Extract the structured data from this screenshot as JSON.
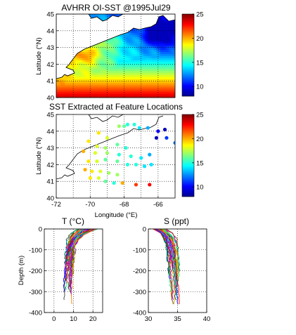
{
  "chart_data": [
    {
      "id": "map1",
      "type": "heatmap",
      "title": "AVHRR OI-SST @1995Jul29",
      "ylabel": "Latitude (°N)",
      "xlim": [
        -72,
        -65
      ],
      "ylim": [
        40,
        45
      ],
      "xticks": [],
      "yticks": [
        40,
        41,
        42,
        43,
        44,
        45
      ],
      "colorbar": {
        "ticks": [
          10,
          15,
          20,
          25
        ],
        "range": [
          8,
          25
        ]
      }
    },
    {
      "id": "map2",
      "type": "scatter",
      "title": "SST Extracted at Feature Locations",
      "xlabel": "Longitude (°E)",
      "ylabel": "Latitude (°N)",
      "xlim": [
        -72,
        -65
      ],
      "ylim": [
        40,
        45
      ],
      "xticks": [
        -72,
        -70,
        -68,
        -66
      ],
      "yticks": [
        40,
        41,
        42,
        43,
        44,
        45
      ],
      "colorbar": {
        "ticks": [
          10,
          15,
          20,
          25
        ],
        "range": [
          8,
          25
        ]
      },
      "points": [
        [
          -68.3,
          44.3,
          17
        ],
        [
          -68.0,
          44.3,
          16
        ],
        [
          -67.8,
          44.4,
          15
        ],
        [
          -67.4,
          44.4,
          15
        ],
        [
          -67.1,
          44.2,
          14
        ],
        [
          -66.6,
          44.2,
          13
        ],
        [
          -66.0,
          44.0,
          10
        ],
        [
          -65.6,
          44.1,
          9
        ],
        [
          -66.1,
          43.6,
          9
        ],
        [
          -65.5,
          43.6,
          11
        ],
        [
          -65.0,
          43.3,
          12
        ],
        [
          -69.5,
          43.9,
          19
        ],
        [
          -69.0,
          43.6,
          18
        ],
        [
          -70.1,
          43.4,
          19
        ],
        [
          -69.6,
          43.1,
          18
        ],
        [
          -69.1,
          43.0,
          17
        ],
        [
          -68.4,
          43.2,
          16
        ],
        [
          -67.9,
          43.0,
          15
        ],
        [
          -70.4,
          42.8,
          20
        ],
        [
          -69.7,
          42.7,
          18
        ],
        [
          -69.0,
          42.7,
          17
        ],
        [
          -68.3,
          42.6,
          15
        ],
        [
          -67.6,
          42.5,
          15
        ],
        [
          -67.0,
          42.4,
          14
        ],
        [
          -66.5,
          42.6,
          13
        ],
        [
          -70.1,
          42.2,
          19
        ],
        [
          -69.6,
          42.2,
          18
        ],
        [
          -69.1,
          42.3,
          16
        ],
        [
          -68.4,
          42.2,
          16
        ],
        [
          -67.8,
          42.0,
          15
        ],
        [
          -67.3,
          42.0,
          15
        ],
        [
          -66.8,
          41.9,
          14
        ],
        [
          -66.4,
          42.0,
          14
        ],
        [
          -70.3,
          41.7,
          20
        ],
        [
          -69.9,
          41.6,
          19
        ],
        [
          -69.4,
          41.6,
          18
        ],
        [
          -68.9,
          41.5,
          17
        ],
        [
          -68.4,
          41.4,
          17
        ],
        [
          -70.0,
          41.2,
          19
        ],
        [
          -69.5,
          41.2,
          18
        ],
        [
          -69.1,
          41.0,
          16
        ],
        [
          -68.6,
          40.9,
          15
        ],
        [
          -68.1,
          40.9,
          20
        ],
        [
          -67.3,
          40.8,
          22
        ],
        [
          -66.5,
          40.8,
          23
        ]
      ]
    },
    {
      "id": "profT",
      "type": "line",
      "title": "T (°C)",
      "ylabel": "Depth (m)",
      "xlim": [
        -5,
        25
      ],
      "ylim": [
        -400,
        0
      ],
      "xticks": [
        0,
        10,
        20
      ],
      "yticks": [
        0,
        -100,
        -200,
        -300,
        -400
      ]
    },
    {
      "id": "profS",
      "type": "line",
      "title": "S (ppt)",
      "xlim": [
        30,
        40
      ],
      "ylim": [
        -400,
        0
      ],
      "xticks": [
        30,
        35,
        40
      ],
      "yticks": [
        0,
        -100,
        -200,
        -300,
        -400
      ]
    }
  ]
}
